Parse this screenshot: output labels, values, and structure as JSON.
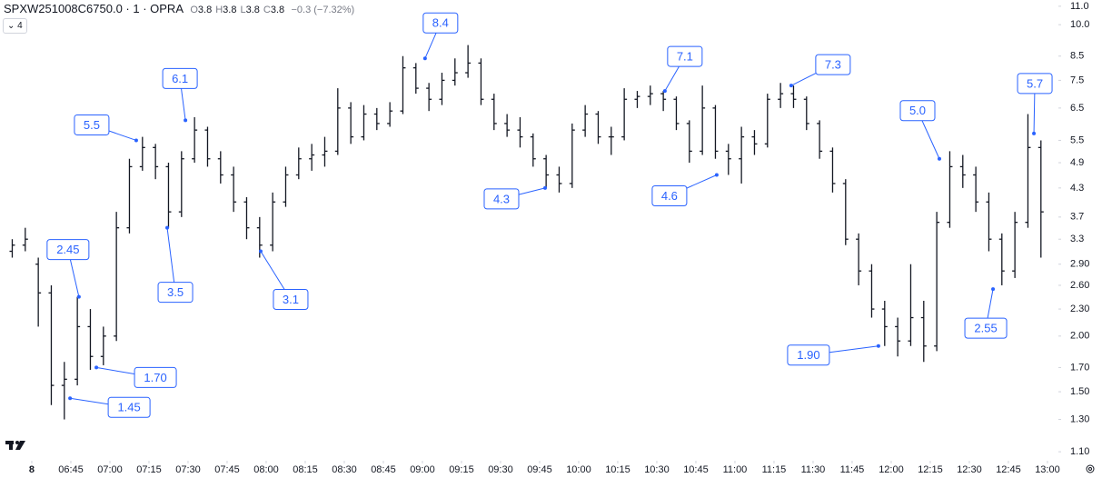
{
  "header": {
    "symbol": "SPXW251008C6750.0 · 1 · OPRA",
    "ohlc": [
      {
        "label": "O",
        "value": 3.8
      },
      {
        "label": "H",
        "value": 3.8
      },
      {
        "label": "L",
        "value": 3.8
      },
      {
        "label": "C",
        "value": 3.8
      }
    ],
    "change": "−0.3 (−7.32%)",
    "indicators": "4"
  },
  "chart_data": {
    "type": "ohlc",
    "log_scale": true,
    "grid": false,
    "color": "#131722",
    "x": [
      380,
      385,
      390,
      395,
      400,
      405,
      410,
      415,
      420,
      425,
      430,
      435,
      440,
      445,
      450,
      455,
      460,
      465,
      470,
      475,
      480,
      485,
      490,
      495,
      500,
      505,
      510,
      515,
      520,
      525,
      530,
      535,
      540,
      545,
      550,
      555,
      560,
      565,
      570,
      575,
      580,
      585,
      590,
      595,
      600,
      605,
      610,
      615,
      620,
      625,
      630,
      635,
      640,
      645,
      650,
      655,
      660,
      665,
      670,
      675,
      680,
      685,
      690,
      695,
      700,
      705,
      710,
      715,
      720,
      725,
      730,
      735,
      740,
      745,
      750,
      755,
      760,
      765,
      770,
      775
    ],
    "ohlc": [
      [
        3.1,
        3.3,
        3.0,
        3.2
      ],
      [
        3.2,
        3.5,
        3.1,
        3.3
      ],
      [
        2.9,
        3.0,
        2.1,
        2.5
      ],
      [
        2.5,
        2.6,
        1.4,
        1.55
      ],
      [
        1.55,
        1.75,
        1.3,
        1.6
      ],
      [
        1.6,
        2.45,
        1.55,
        2.1
      ],
      [
        2.1,
        2.3,
        1.68,
        1.8
      ],
      [
        1.8,
        2.1,
        1.72,
        2.0
      ],
      [
        2.0,
        3.8,
        1.95,
        3.5
      ],
      [
        3.5,
        5.0,
        3.4,
        4.8
      ],
      [
        4.8,
        5.6,
        4.7,
        5.3
      ],
      [
        5.3,
        5.4,
        4.5,
        4.8
      ],
      [
        4.8,
        4.9,
        3.5,
        3.8
      ],
      [
        3.8,
        5.2,
        3.7,
        5.0
      ],
      [
        5.0,
        6.2,
        4.9,
        5.8
      ],
      [
        5.8,
        5.9,
        4.8,
        5.0
      ],
      [
        5.0,
        5.2,
        4.4,
        4.6
      ],
      [
        4.6,
        4.8,
        3.8,
        4.0
      ],
      [
        4.0,
        4.1,
        3.3,
        3.5
      ],
      [
        3.5,
        3.7,
        3.0,
        3.2
      ],
      [
        3.2,
        4.2,
        3.1,
        4.0
      ],
      [
        4.0,
        4.8,
        3.9,
        4.6
      ],
      [
        4.6,
        5.3,
        4.5,
        5.0
      ],
      [
        5.0,
        5.4,
        4.7,
        5.1
      ],
      [
        5.1,
        5.6,
        4.8,
        5.2
      ],
      [
        5.2,
        7.2,
        5.1,
        6.5
      ],
      [
        6.5,
        6.7,
        5.4,
        5.6
      ],
      [
        5.6,
        6.6,
        5.5,
        6.3
      ],
      [
        6.3,
        6.5,
        5.8,
        6.0
      ],
      [
        6.0,
        6.7,
        5.9,
        6.4
      ],
      [
        6.4,
        8.5,
        6.3,
        8.0
      ],
      [
        8.0,
        8.2,
        7.0,
        7.2
      ],
      [
        7.2,
        7.4,
        6.4,
        6.8
      ],
      [
        6.8,
        7.8,
        6.6,
        7.5
      ],
      [
        7.5,
        8.4,
        7.3,
        7.8
      ],
      [
        7.8,
        9.0,
        7.6,
        8.2
      ],
      [
        8.2,
        8.4,
        6.6,
        6.8
      ],
      [
        6.8,
        7.0,
        5.8,
        6.0
      ],
      [
        6.0,
        6.3,
        5.6,
        5.8
      ],
      [
        5.8,
        6.2,
        5.3,
        5.6
      ],
      [
        5.6,
        5.7,
        4.8,
        5.0
      ],
      [
        5.0,
        5.1,
        4.3,
        4.6
      ],
      [
        4.6,
        4.8,
        4.2,
        4.4
      ],
      [
        4.4,
        6.0,
        4.3,
        5.8
      ],
      [
        5.8,
        6.6,
        5.6,
        6.3
      ],
      [
        6.3,
        6.4,
        5.4,
        5.6
      ],
      [
        5.6,
        5.9,
        5.1,
        5.6
      ],
      [
        5.6,
        7.2,
        5.5,
        6.8
      ],
      [
        6.8,
        7.1,
        6.5,
        6.9
      ],
      [
        6.9,
        7.3,
        6.6,
        7.0
      ],
      [
        7.0,
        7.1,
        6.4,
        6.8
      ],
      [
        6.8,
        6.9,
        5.8,
        6.0
      ],
      [
        6.0,
        6.1,
        4.9,
        5.2
      ],
      [
        5.2,
        7.3,
        5.1,
        6.5
      ],
      [
        6.5,
        6.6,
        5.0,
        5.2
      ],
      [
        5.2,
        5.4,
        4.6,
        5.0
      ],
      [
        5.0,
        5.9,
        4.4,
        5.6
      ],
      [
        5.6,
        5.8,
        5.1,
        5.4
      ],
      [
        5.4,
        7.0,
        5.3,
        6.8
      ],
      [
        6.8,
        7.4,
        6.5,
        7.0
      ],
      [
        7.0,
        7.3,
        6.5,
        6.8
      ],
      [
        6.8,
        6.9,
        5.8,
        6.0
      ],
      [
        6.0,
        6.1,
        5.0,
        5.2
      ],
      [
        5.2,
        5.3,
        4.2,
        4.4
      ],
      [
        4.4,
        4.5,
        3.2,
        3.3
      ],
      [
        3.3,
        3.4,
        2.6,
        2.8
      ],
      [
        2.8,
        2.9,
        2.2,
        2.3
      ],
      [
        2.3,
        2.4,
        1.9,
        2.1
      ],
      [
        2.1,
        2.2,
        1.8,
        1.95
      ],
      [
        1.95,
        2.9,
        1.9,
        2.2
      ],
      [
        2.2,
        2.4,
        1.75,
        1.9
      ],
      [
        1.9,
        3.8,
        1.85,
        3.6
      ],
      [
        3.6,
        5.2,
        3.5,
        4.8
      ],
      [
        4.8,
        5.1,
        4.3,
        4.6
      ],
      [
        4.6,
        4.8,
        3.8,
        4.0
      ],
      [
        4.0,
        4.2,
        3.1,
        3.3
      ],
      [
        3.3,
        3.4,
        2.6,
        2.8
      ],
      [
        2.8,
        3.8,
        2.7,
        3.6
      ],
      [
        3.6,
        6.3,
        3.5,
        5.3
      ],
      [
        5.3,
        5.5,
        3.0,
        3.8
      ]
    ],
    "xlim": [
      377.8,
      784.2
    ],
    "xticks": [
      {
        "value": 390,
        "label": "8"
      },
      {
        "value": 405,
        "label": "06:45"
      },
      {
        "value": 420,
        "label": "07:00"
      },
      {
        "value": 435,
        "label": "07:15"
      },
      {
        "value": 450,
        "label": "07:30"
      },
      {
        "value": 465,
        "label": "07:45"
      },
      {
        "value": 480,
        "label": "08:00"
      },
      {
        "value": 495,
        "label": "08:15"
      },
      {
        "value": 510,
        "label": "08:30"
      },
      {
        "value": 525,
        "label": "08:45"
      },
      {
        "value": 540,
        "label": "09:00"
      },
      {
        "value": 555,
        "label": "09:15"
      },
      {
        "value": 570,
        "label": "09:30"
      },
      {
        "value": 585,
        "label": "09:45"
      },
      {
        "value": 600,
        "label": "10:00"
      },
      {
        "value": 615,
        "label": "10:15"
      },
      {
        "value": 630,
        "label": "10:30"
      },
      {
        "value": 645,
        "label": "10:45"
      },
      {
        "value": 660,
        "label": "11:00"
      },
      {
        "value": 675,
        "label": "11:15"
      },
      {
        "value": 690,
        "label": "11:30"
      },
      {
        "value": 705,
        "label": "11:45"
      },
      {
        "value": 720,
        "label": "12:00"
      },
      {
        "value": 735,
        "label": "12:15"
      },
      {
        "value": 750,
        "label": "12:30"
      },
      {
        "value": 765,
        "label": "12:45"
      },
      {
        "value": 780,
        "label": "13:00"
      }
    ],
    "ylim": [
      1.06,
      11.36
    ],
    "yticks": [
      {
        "value": 11,
        "label": "11.0"
      },
      {
        "value": 10,
        "label": "10.0"
      },
      8.5,
      7.5,
      6.5,
      5.5,
      4.9,
      4.3,
      3.7,
      3.3,
      {
        "value": 2.9,
        "label": "2.90"
      },
      {
        "value": 2.6,
        "label": "2.60"
      },
      {
        "value": 2.3,
        "label": "2.30"
      },
      {
        "value": 2,
        "label": "2.00"
      },
      {
        "value": 1.7,
        "label": "1.70"
      },
      {
        "value": 1.5,
        "label": "1.50"
      },
      {
        "value": 1.3,
        "label": "1.30"
      },
      {
        "value": 1.1,
        "label": "1.10"
      }
    ],
    "annotations": [
      {
        "label": "2.45",
        "x": 408.1,
        "value": 2.45
      },
      {
        "label": "1.70",
        "x": 414.8,
        "value": 1.7
      },
      {
        "label": "1.45",
        "x": 404.7,
        "value": 1.45
      },
      {
        "label": "5.5",
        "x": 430.1,
        "value": 5.5
      },
      {
        "label": "3.5",
        "x": 442,
        "value": 3.5
      },
      {
        "label": "6.1",
        "x": 449,
        "value": 6.1
      },
      {
        "label": "3.1",
        "x": 477.9,
        "value": 3.1
      },
      {
        "label": "8.4",
        "x": 541,
        "value": 8.4
      },
      {
        "label": "4.3",
        "x": 587.1,
        "value": 4.3
      },
      {
        "label": "7.1",
        "x": 633.1,
        "value": 7.1
      },
      {
        "label": "4.6",
        "x": 653,
        "value": 4.6
      },
      {
        "label": "7.3",
        "x": 681.6,
        "value": 7.3
      },
      {
        "label": "5.0",
        "x": 738.5,
        "value": 5.0
      },
      {
        "label": "1.90",
        "x": 715.1,
        "value": 1.9
      },
      {
        "label": "2.55",
        "x": 759.1,
        "value": 2.55
      },
      {
        "label": "5.7",
        "x": 774.8,
        "value": 5.7
      }
    ],
    "annotation_color": "#2962ff"
  }
}
